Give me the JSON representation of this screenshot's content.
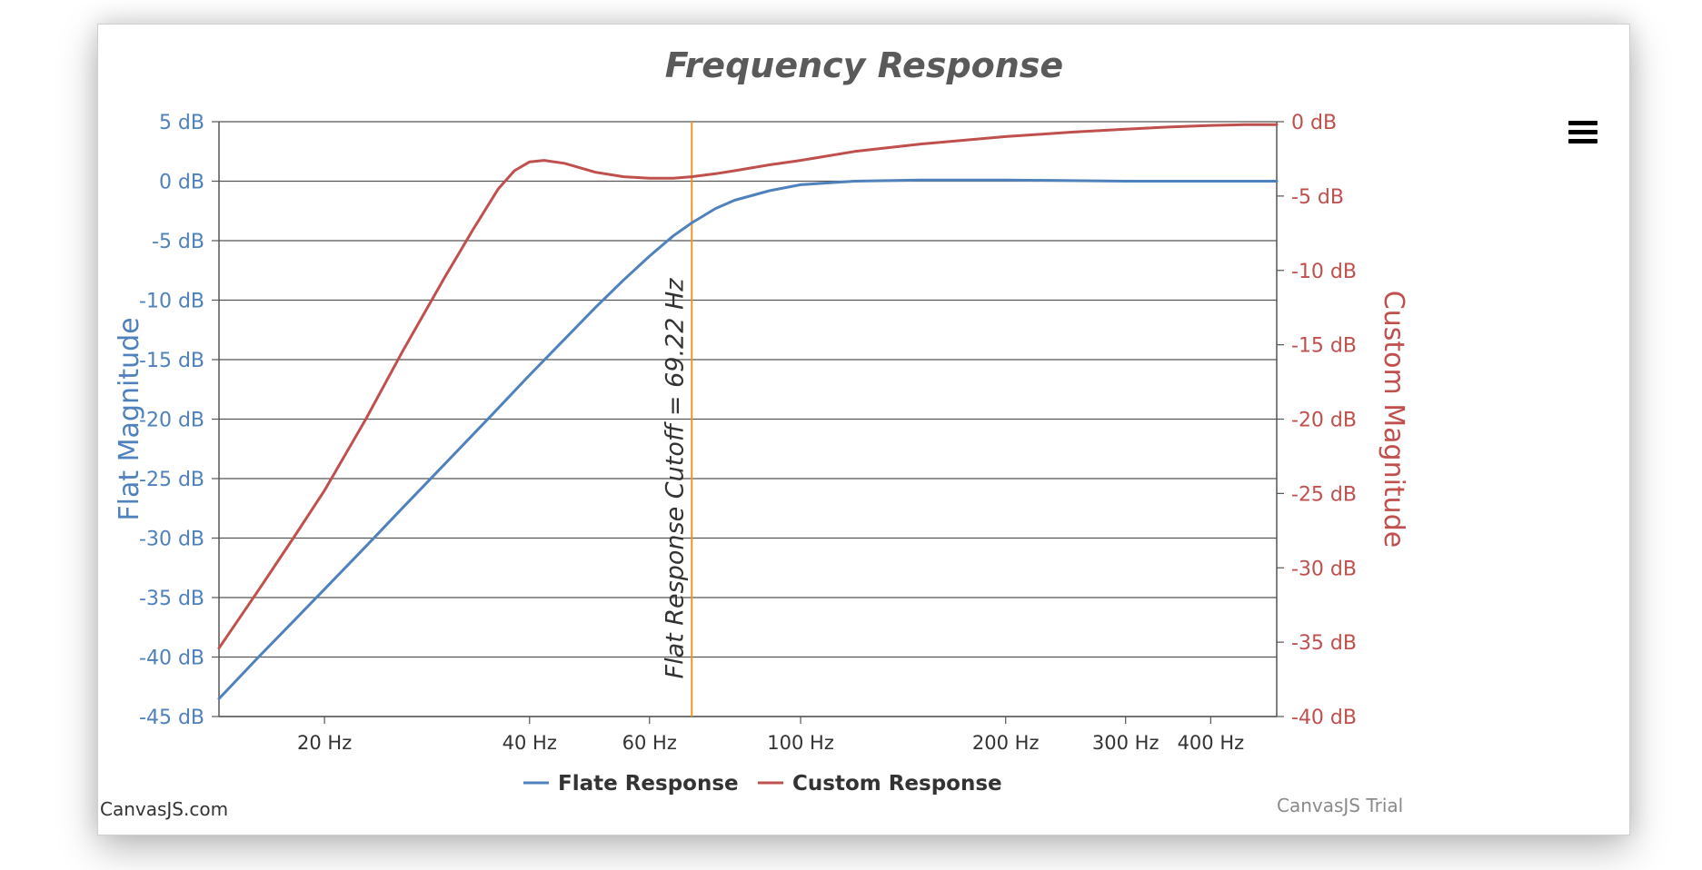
{
  "menu_icon": "hamburger-menu-icon",
  "credit": "CanvasJS.com",
  "trial": "CanvasJS Trial",
  "chart_data": {
    "type": "line",
    "title": "Frequency Response",
    "xlabel": "",
    "x_scale": "log",
    "xlim": [
      14,
      500
    ],
    "x_ticks": [
      20,
      40,
      60,
      100,
      200,
      300,
      400
    ],
    "x_tick_labels": [
      "20 Hz",
      "40 Hz",
      "60 Hz",
      "100 Hz",
      "200 Hz",
      "300 Hz",
      "400 Hz"
    ],
    "y_left": {
      "label": "Flat Magnitude",
      "ylim": [
        -45,
        5
      ],
      "ticks": [
        5,
        0,
        -5,
        -10,
        -15,
        -20,
        -25,
        -30,
        -35,
        -40,
        -45
      ],
      "tick_labels": [
        "5 dB",
        "0 dB",
        "-5 dB",
        "-10 dB",
        "-15 dB",
        "-20 dB",
        "-25 dB",
        "-30 dB",
        "-35 dB",
        "-40 dB",
        "-45 dB"
      ],
      "color": "#4f81bc"
    },
    "y_right": {
      "label": "Custom Magnitude",
      "ylim": [
        -40,
        0
      ],
      "ticks": [
        0,
        -5,
        -10,
        -15,
        -20,
        -25,
        -30,
        -35,
        -40
      ],
      "tick_labels": [
        "0 dB",
        "-5 dB",
        "-10 dB",
        "-15 dB",
        "-20 dB",
        "-25 dB",
        "-30 dB",
        "-35 dB",
        "-40 dB"
      ],
      "color": "#c0504e"
    },
    "grid": true,
    "legend": "bottom",
    "series": [
      {
        "name": "Flate Response",
        "axis": "left",
        "color": "#4f81bc",
        "x": [
          14,
          16,
          18,
          20,
          23,
          26,
          30,
          35,
          40,
          45,
          50,
          55,
          60,
          65,
          69.22,
          75,
          80,
          90,
          100,
          120,
          150,
          200,
          300,
          400,
          500
        ],
        "y": [
          -43.5,
          -40.0,
          -37.0,
          -34.3,
          -30.7,
          -27.5,
          -23.8,
          -19.8,
          -16.3,
          -13.3,
          -10.6,
          -8.3,
          -6.3,
          -4.6,
          -3.5,
          -2.3,
          -1.6,
          -0.8,
          -0.3,
          0.0,
          0.1,
          0.1,
          0.0,
          0.0,
          0.0
        ]
      },
      {
        "name": "Custom Response",
        "axis": "right",
        "color": "#c0504e",
        "x": [
          14,
          16,
          18,
          20,
          23,
          26,
          30,
          33,
          36,
          38,
          40,
          42,
          45,
          50,
          55,
          60,
          65,
          69.22,
          75,
          80,
          90,
          100,
          120,
          150,
          200,
          250,
          300,
          350,
          400,
          450,
          500
        ],
        "y": [
          -35.4,
          -31.5,
          -28.0,
          -24.8,
          -20.0,
          -15.5,
          -10.5,
          -7.3,
          -4.5,
          -3.3,
          -2.7,
          -2.6,
          -2.8,
          -3.4,
          -3.7,
          -3.8,
          -3.8,
          -3.7,
          -3.5,
          -3.3,
          -2.9,
          -2.6,
          -2.0,
          -1.5,
          -1.0,
          -0.7,
          -0.5,
          -0.35,
          -0.25,
          -0.2,
          -0.2
        ]
      }
    ],
    "strip_line": {
      "x": 69.22,
      "label": "Flat Response Cutoff = 69.22 Hz",
      "color": "#f0932b"
    }
  }
}
